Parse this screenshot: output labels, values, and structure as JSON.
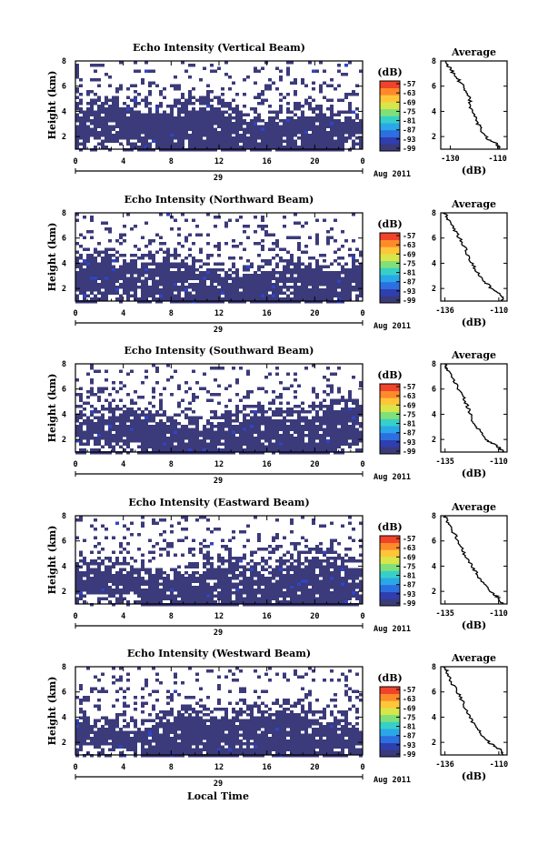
{
  "figure": {
    "xlabel": "Local Time",
    "date_label": "Aug 2011",
    "day_label": "29",
    "ylabel": "Height (km)",
    "avg_xlabel": "(dB)"
  },
  "chart_data": [
    {
      "type": "heatmap",
      "title": "Echo Intensity (Vertical Beam)",
      "xlabel": "Local Time",
      "ylabel": "Height (km)",
      "x_ticks": [
        "0",
        "4",
        "8",
        "12",
        "16",
        "20",
        "0"
      ],
      "y_ticks": [
        "2",
        "4",
        "6",
        "8"
      ],
      "xlim": [
        0,
        24
      ],
      "ylim": [
        1,
        8
      ],
      "colorbar": {
        "label": "(dB)",
        "ticks": [
          "-57",
          "-63",
          "-69",
          "-75",
          "-81",
          "-87",
          "-93",
          "-99"
        ],
        "colors": [
          "#3b3a7a",
          "#2f3fb0",
          "#2c6fe0",
          "#2aa7e8",
          "#36d0c8",
          "#7fe07a",
          "#d8e64a",
          "#ffc63a",
          "#ff8a2a",
          "#f0432a"
        ]
      },
      "average": {
        "title": "Average",
        "x_ticks": [
          "-130",
          "-110"
        ],
        "xlim": [
          -134,
          -106
        ],
        "y_ticks": [
          "2",
          "4",
          "6",
          "8"
        ],
        "profile": [
          [
            -109,
            1.0
          ],
          [
            -110,
            1.4
          ],
          [
            -114,
            1.8
          ],
          [
            -117,
            2.5
          ],
          [
            -119,
            3.3
          ],
          [
            -121,
            4.2
          ],
          [
            -122,
            5.0
          ],
          [
            -124,
            5.8
          ],
          [
            -127,
            6.6
          ],
          [
            -130,
            7.4
          ],
          [
            -132,
            8.0
          ]
        ]
      }
    },
    {
      "type": "heatmap",
      "title": "Echo Intensity (Northward Beam)",
      "xlabel": "Local Time",
      "ylabel": "Height (km)",
      "x_ticks": [
        "0",
        "4",
        "8",
        "12",
        "16",
        "20",
        "0"
      ],
      "y_ticks": [
        "2",
        "4",
        "6",
        "8"
      ],
      "xlim": [
        0,
        24
      ],
      "ylim": [
        1,
        8
      ],
      "colorbar": {
        "label": "(dB)",
        "ticks": [
          "-57",
          "-63",
          "-69",
          "-75",
          "-81",
          "-87",
          "-93",
          "-99"
        ],
        "colors": [
          "#3b3a7a",
          "#2f3fb0",
          "#2c6fe0",
          "#2aa7e8",
          "#36d0c8",
          "#7fe07a",
          "#d8e64a",
          "#ffc63a",
          "#ff8a2a",
          "#f0432a"
        ]
      },
      "average": {
        "title": "Average",
        "x_ticks": [
          "-136",
          "-110"
        ],
        "xlim": [
          -138,
          -106
        ],
        "y_ticks": [
          "2",
          "4",
          "6",
          "8"
        ],
        "profile": [
          [
            -108,
            1.0
          ],
          [
            -109,
            1.5
          ],
          [
            -113,
            1.9
          ],
          [
            -117,
            2.6
          ],
          [
            -121,
            3.4
          ],
          [
            -124,
            4.3
          ],
          [
            -126,
            5.1
          ],
          [
            -129,
            6.0
          ],
          [
            -132,
            6.8
          ],
          [
            -135,
            7.6
          ],
          [
            -136,
            8.0
          ]
        ]
      }
    },
    {
      "type": "heatmap",
      "title": "Echo Intensity (Southward Beam)",
      "xlabel": "Local Time",
      "ylabel": "Height (km)",
      "x_ticks": [
        "0",
        "4",
        "8",
        "12",
        "16",
        "20",
        "0"
      ],
      "y_ticks": [
        "2",
        "4",
        "6",
        "8"
      ],
      "xlim": [
        0,
        24
      ],
      "ylim": [
        1,
        8
      ],
      "colorbar": {
        "label": "(dB)",
        "ticks": [
          "-57",
          "-63",
          "-69",
          "-75",
          "-81",
          "-87",
          "-93",
          "-99"
        ],
        "colors": [
          "#3b3a7a",
          "#2f3fb0",
          "#2c6fe0",
          "#2aa7e8",
          "#36d0c8",
          "#7fe07a",
          "#d8e64a",
          "#ffc63a",
          "#ff8a2a",
          "#f0432a"
        ]
      },
      "average": {
        "title": "Average",
        "x_ticks": [
          "-135",
          "-110"
        ],
        "xlim": [
          -137,
          -106
        ],
        "y_ticks": [
          "2",
          "4",
          "6",
          "8"
        ],
        "profile": [
          [
            -108,
            1.0
          ],
          [
            -110,
            1.4
          ],
          [
            -115,
            1.9
          ],
          [
            -119,
            2.7
          ],
          [
            -122,
            3.5
          ],
          [
            -124,
            4.4
          ],
          [
            -126,
            5.2
          ],
          [
            -129,
            6.0
          ],
          [
            -131,
            6.8
          ],
          [
            -134,
            7.6
          ],
          [
            -135,
            8.0
          ]
        ]
      }
    },
    {
      "type": "heatmap",
      "title": "Echo Intensity (Eastward Beam)",
      "xlabel": "Local Time",
      "ylabel": "Height (km)",
      "x_ticks": [
        "0",
        "4",
        "8",
        "12",
        "16",
        "20",
        "0"
      ],
      "y_ticks": [
        "2",
        "4",
        "6",
        "8"
      ],
      "xlim": [
        0,
        24
      ],
      "ylim": [
        1,
        8
      ],
      "colorbar": {
        "label": "(dB)",
        "ticks": [
          "-57",
          "-63",
          "-69",
          "-75",
          "-81",
          "-87",
          "-93",
          "-99"
        ],
        "colors": [
          "#3b3a7a",
          "#2f3fb0",
          "#2c6fe0",
          "#2aa7e8",
          "#36d0c8",
          "#7fe07a",
          "#d8e64a",
          "#ffc63a",
          "#ff8a2a",
          "#f0432a"
        ]
      },
      "average": {
        "title": "Average",
        "x_ticks": [
          "-135",
          "-110"
        ],
        "xlim": [
          -137,
          -106
        ],
        "y_ticks": [
          "2",
          "4",
          "6",
          "8"
        ],
        "profile": [
          [
            -108,
            1.0
          ],
          [
            -110,
            1.5
          ],
          [
            -114,
            2.0
          ],
          [
            -118,
            2.8
          ],
          [
            -121,
            3.6
          ],
          [
            -124,
            4.4
          ],
          [
            -127,
            5.3
          ],
          [
            -129,
            6.1
          ],
          [
            -132,
            6.9
          ],
          [
            -134,
            7.6
          ],
          [
            -135,
            8.0
          ]
        ]
      }
    },
    {
      "type": "heatmap",
      "title": "Echo Intensity (Westward Beam)",
      "xlabel": "Local Time",
      "ylabel": "Height (km)",
      "x_ticks": [
        "0",
        "4",
        "8",
        "12",
        "16",
        "20",
        "0"
      ],
      "y_ticks": [
        "2",
        "4",
        "6",
        "8"
      ],
      "xlim": [
        0,
        24
      ],
      "ylim": [
        1,
        8
      ],
      "colorbar": {
        "label": "(dB)",
        "ticks": [
          "-57",
          "-63",
          "-69",
          "-75",
          "-81",
          "-87",
          "-93",
          "-99"
        ],
        "colors": [
          "#3b3a7a",
          "#2f3fb0",
          "#2c6fe0",
          "#2aa7e8",
          "#36d0c8",
          "#7fe07a",
          "#d8e64a",
          "#ffc63a",
          "#ff8a2a",
          "#f0432a"
        ]
      },
      "average": {
        "title": "Average",
        "x_ticks": [
          "-136",
          "-110"
        ],
        "xlim": [
          -138,
          -106
        ],
        "y_ticks": [
          "2",
          "4",
          "6",
          "8"
        ],
        "profile": [
          [
            -108,
            1.0
          ],
          [
            -109,
            1.4
          ],
          [
            -114,
            1.9
          ],
          [
            -118,
            2.6
          ],
          [
            -122,
            3.4
          ],
          [
            -125,
            4.3
          ],
          [
            -127,
            5.1
          ],
          [
            -130,
            6.0
          ],
          [
            -133,
            6.8
          ],
          [
            -135,
            7.6
          ],
          [
            -136,
            8.0
          ]
        ]
      }
    }
  ]
}
